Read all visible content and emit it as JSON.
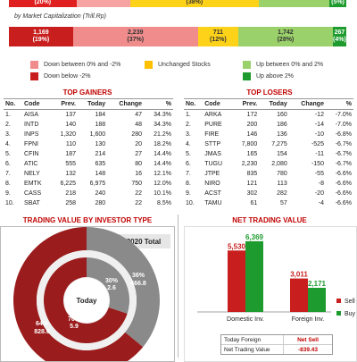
{
  "top_bar": {
    "segments": [
      {
        "label": "(20%)",
        "color": "#e02020",
        "pct": 20,
        "text_color": "white"
      },
      {
        "label": "",
        "color": "#f5a3a3",
        "pct": 16,
        "text_color": "dark"
      },
      {
        "label": "(38%)",
        "color": "#ffd21a",
        "pct": 38,
        "text_color": "dark"
      },
      {
        "label": "",
        "color": "#9bd16a",
        "pct": 21,
        "text_color": "dark"
      },
      {
        "label": "(5%)",
        "color": "#1e9b2e",
        "pct": 5,
        "text_color": "white"
      }
    ]
  },
  "market_cap": {
    "caption": "by Market Capitalization (Trill.Rp)",
    "segments": [
      {
        "value": "1,169",
        "pct_label": "(19%)",
        "color": "#c81e1e",
        "pct": 19,
        "text_color": "white"
      },
      {
        "value": "2,239",
        "pct_label": "(37%)",
        "color": "#f08c8c",
        "pct": 37,
        "text_color": "dark"
      },
      {
        "value": "711",
        "pct_label": "(12%)",
        "color": "#ffd21a",
        "pct": 12,
        "text_color": "dark"
      },
      {
        "value": "1,742",
        "pct_label": "(28%)",
        "color": "#9bd16a",
        "pct": 28,
        "text_color": "dark"
      },
      {
        "value": "267",
        "pct_label": "(4%)",
        "color": "#1e9b2e",
        "pct": 4,
        "text_color": "white"
      }
    ]
  },
  "legend": [
    {
      "label": "Down between 0% and -2%",
      "color": "#f08c8c"
    },
    {
      "label": "Unchanged Stocks",
      "color": "#ffc000"
    },
    {
      "label": "Up between 0% and 2%",
      "color": "#9bd16a"
    },
    {
      "label": "Down below -2%",
      "color": "#c81e1e"
    },
    {
      "label": "Up above 2%",
      "color": "#1e9b2e"
    }
  ],
  "top_gainers": {
    "title": "TOP GAINERS",
    "headers": [
      "No.",
      "Code",
      "Prev.",
      "Today",
      "Change",
      "%"
    ],
    "rows": [
      [
        "1.",
        "AISA",
        "137",
        "184",
        "47",
        "34.3%"
      ],
      [
        "2.",
        "INTD",
        "140",
        "188",
        "48",
        "34.3%"
      ],
      [
        "3.",
        "INPS",
        "1,320",
        "1,600",
        "280",
        "21.2%"
      ],
      [
        "4.",
        "FPNI",
        "110",
        "130",
        "20",
        "18.2%"
      ],
      [
        "5.",
        "CFIN",
        "187",
        "214",
        "27",
        "14.4%"
      ],
      [
        "6.",
        "ATIC",
        "555",
        "635",
        "80",
        "14.4%"
      ],
      [
        "7.",
        "NELY",
        "132",
        "148",
        "16",
        "12.1%"
      ],
      [
        "8.",
        "EMTK",
        "6,225",
        "6,975",
        "750",
        "12.0%"
      ],
      [
        "9.",
        "CASS",
        "218",
        "240",
        "22",
        "10.1%"
      ],
      [
        "10.",
        "SBAT",
        "258",
        "280",
        "22",
        "8.5%"
      ]
    ]
  },
  "top_losers": {
    "title": "TOP LOSERS",
    "headers": [
      "No.",
      "Code",
      "Prev.",
      "Today",
      "Change",
      "%"
    ],
    "rows": [
      [
        "1.",
        "ARKA",
        "172",
        "160",
        "-12",
        "-7.0%"
      ],
      [
        "2.",
        "PURE",
        "200",
        "186",
        "-14",
        "-7.0%"
      ],
      [
        "3.",
        "FIRE",
        "146",
        "136",
        "-10",
        "-6.8%"
      ],
      [
        "4.",
        "STTP",
        "7,800",
        "7,275",
        "-525",
        "-6.7%"
      ],
      [
        "5.",
        "JMAS",
        "165",
        "154",
        "-11",
        "-6.7%"
      ],
      [
        "6.",
        "TUGU",
        "2,230",
        "2,080",
        "-150",
        "-6.7%"
      ],
      [
        "7.",
        "JTPE",
        "835",
        "780",
        "-55",
        "-6.6%"
      ],
      [
        "8.",
        "NIRO",
        "121",
        "113",
        "-8",
        "-6.6%"
      ],
      [
        "9.",
        "ACST",
        "302",
        "282",
        "-20",
        "-6.6%"
      ],
      [
        "10.",
        "TAMU",
        "61",
        "57",
        "-4",
        "-6.6%"
      ]
    ]
  },
  "investor_type": {
    "title": "TRADING VALUE BY INVESTOR TYPE",
    "year_label": "2020 Total",
    "center_label": "Today",
    "outer": [
      {
        "pct": 64,
        "label": "64%",
        "value": "828.0",
        "color": "#9b1c1c"
      },
      {
        "pct": 36,
        "label": "36%",
        "value": "466.8",
        "color": "#8a8a8a"
      }
    ],
    "inner": [
      {
        "pct": 70,
        "label": "70%",
        "value": "5.9",
        "color": "#9b1c1c"
      },
      {
        "pct": 30,
        "label": "30%",
        "value": "2.6",
        "color": "#8a8a8a"
      }
    ],
    "ring_gap_color": "#f0f0f0"
  },
  "net_trading": {
    "title": "NET TRADING VALUE",
    "chart_data": {
      "type": "bar",
      "categories": [
        "Domestic Inv.",
        "Foreign Inv."
      ],
      "series": [
        {
          "name": "Sell",
          "values": [
            5530,
            3011
          ],
          "labels": [
            "5,530",
            "3,011"
          ],
          "color": "#c81e1e"
        },
        {
          "name": "Buy",
          "values": [
            6369,
            2171
          ],
          "labels": [
            "6,369",
            "2,171"
          ],
          "color": "#1e9b2e"
        }
      ],
      "ylim": [
        0,
        7000
      ]
    },
    "info": [
      {
        "key": "Today Foreign",
        "value": "Net Sell"
      },
      {
        "key": "Net Trading Value",
        "value": "-839.43"
      }
    ]
  }
}
